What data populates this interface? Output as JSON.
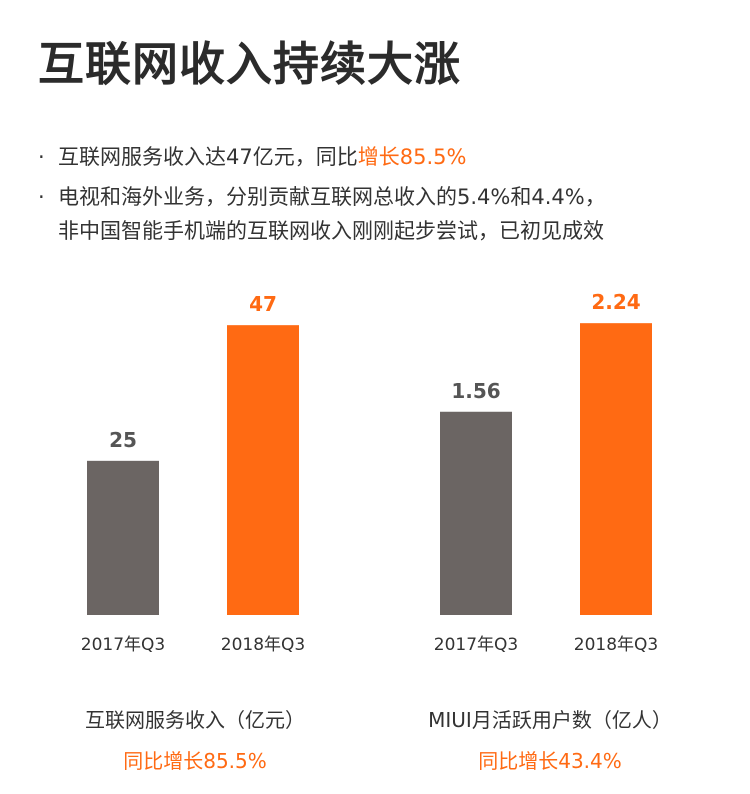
{
  "page": {
    "title": "互联网收入持续大涨",
    "bullet1_prefix": "互联网服务收入达47亿元，同比",
    "bullet1_highlight": "增长85.5%",
    "bullet2_line1": "电视和海外业务，分别贡献互联网总收入的5.4%和4.4%，",
    "bullet2_line2": "非中国智能手机端的互联网收入刚刚起步尝试，已初见成效",
    "bullet_marker": "·"
  },
  "colors": {
    "accent": "#ff6a13",
    "dark_bar": "#6b6563",
    "text": "#333333"
  },
  "chart_data": [
    {
      "type": "bar",
      "title": "",
      "categories": [
        "2017年Q3",
        "2018年Q3"
      ],
      "values": [
        25,
        47
      ],
      "value_labels": [
        "25",
        "47"
      ],
      "caption": "互联网服务收入（亿元）",
      "growth": "同比增长85.5%",
      "ylim": [
        0,
        60
      ],
      "grid": false
    },
    {
      "type": "bar",
      "title": "",
      "categories": [
        "2017年Q3",
        "2018年Q3"
      ],
      "values": [
        1.56,
        2.24
      ],
      "value_labels": [
        "1.56",
        "2.24"
      ],
      "caption": "MIUI月活跃用户数（亿人）",
      "growth": "同比增长43.4%",
      "ylim": [
        0,
        2.84
      ],
      "grid": false
    }
  ]
}
